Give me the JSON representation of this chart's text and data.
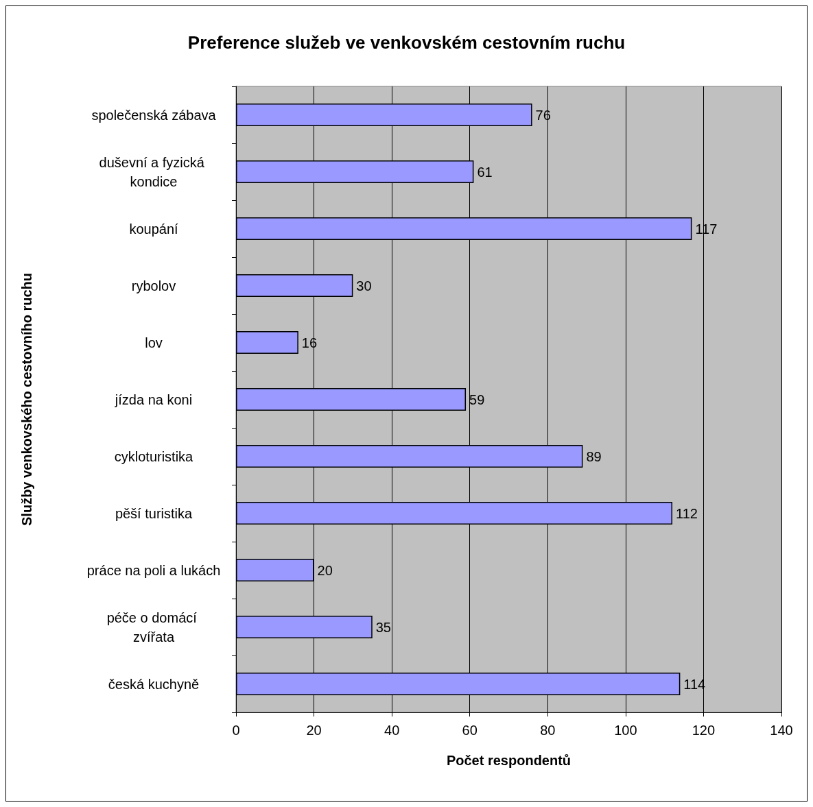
{
  "chart_data": {
    "type": "bar",
    "orientation": "horizontal",
    "title": "Preference služeb ve venkovském cestovním ruchu",
    "xlabel": "Počet respondentů",
    "ylabel": "Služby venkovského cestovního ruchu",
    "categories": [
      "společenská zábava",
      "duševní a fyzická kondice",
      "koupání",
      "rybolov",
      "lov",
      "jízda na koni",
      "cykloturistika",
      "pěší turistika",
      "práce na poli a lukách",
      "péče o domácí zvířata",
      "česká kuchyně"
    ],
    "values": [
      76,
      61,
      117,
      30,
      16,
      59,
      89,
      112,
      20,
      35,
      114
    ],
    "color": "#9999ff",
    "xlim": [
      0,
      140
    ],
    "xticks": [
      0,
      20,
      40,
      60,
      80,
      100,
      120,
      140
    ],
    "grid": "x",
    "data_labels": true
  }
}
